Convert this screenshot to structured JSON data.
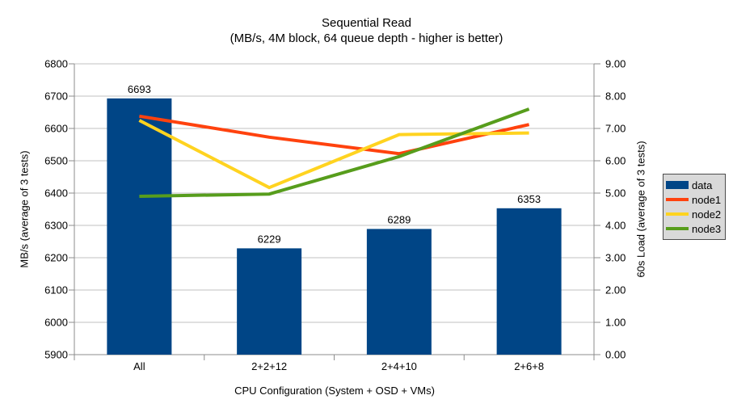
{
  "title": "Sequential Read",
  "subtitle": "(MB/s, 4M block, 64 queue depth - higher is better)",
  "chart_data": {
    "type": "bar+line",
    "categories": [
      "All",
      "2+2+12",
      "2+4+10",
      "2+6+8"
    ],
    "bar_series": {
      "name": "data",
      "color": "#004586",
      "axis": "left",
      "values": [
        6693,
        6229,
        6289,
        6353
      ],
      "value_labels": [
        "6693",
        "6229",
        "6289",
        "6353"
      ]
    },
    "line_series": [
      {
        "name": "node1",
        "color": "#ff420e",
        "axis": "right",
        "values": [
          7.38,
          6.73,
          6.22,
          7.12
        ]
      },
      {
        "name": "node2",
        "color": "#ffd320",
        "axis": "right",
        "values": [
          7.25,
          5.17,
          6.81,
          6.86
        ]
      },
      {
        "name": "node3",
        "color": "#579d1c",
        "axis": "right",
        "values": [
          4.9,
          4.97,
          6.13,
          7.6
        ]
      }
    ],
    "xlabel": "CPU Configuration (System + OSD + VMs)",
    "ylabel_left": "MB/s (average of 3 tests)",
    "ylabel_right": "60s Load (average of 3 tests)",
    "ylim_left": [
      5900,
      6800
    ],
    "ytick_step_left": 100,
    "ylim_right": [
      0.0,
      9.0
    ],
    "ytick_step_right": 1.0,
    "grid": true,
    "legend_position": "right",
    "legend_entries": [
      "data",
      "node1",
      "node2",
      "node3"
    ]
  },
  "colors": {
    "background": "#ffffff",
    "grid": "#c0c0c0",
    "axis": "#8c8c8c",
    "text": "#000000",
    "legend_bg": "#d9d9d9",
    "legend_border": "#4d4d4d"
  }
}
